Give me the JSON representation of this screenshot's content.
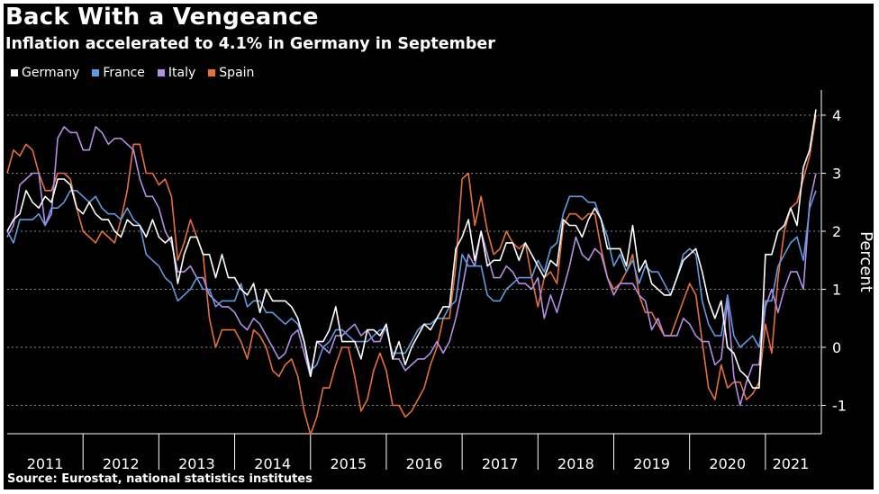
{
  "header": {
    "title": "Back With a Vengeance",
    "subtitle": "Inflation accelerated to 4.1% in Germany in September"
  },
  "source": "Source: Eurostat, national statistics institutes",
  "chart_data": {
    "type": "line",
    "title": "Back With a Vengeance",
    "subtitle": "Inflation accelerated to 4.1% in Germany in September",
    "ylabel": "Percent",
    "xlabel": "",
    "ylim": [
      -1.5,
      4.4
    ],
    "yticks": [
      -1,
      0,
      1,
      2,
      3,
      4
    ],
    "ytick_labels": [
      "-1",
      "0",
      "1",
      "2",
      "3",
      "4"
    ],
    "x_start": "2011-01",
    "x_end": "2021-09",
    "year_labels": [
      "2011",
      "2012",
      "2013",
      "2014",
      "2015",
      "2016",
      "2017",
      "2018",
      "2019",
      "2020",
      "2021"
    ],
    "legend_position": "top-left",
    "grid": "horizontal dotted",
    "series": [
      {
        "name": "Germany",
        "color": "#ffffff",
        "values": [
          2.0,
          2.2,
          2.3,
          2.7,
          2.5,
          2.4,
          2.6,
          2.5,
          2.9,
          2.9,
          2.8,
          2.4,
          2.3,
          2.5,
          2.3,
          2.2,
          2.2,
          2.0,
          1.9,
          2.2,
          2.1,
          2.1,
          1.9,
          2.2,
          1.9,
          1.8,
          1.9,
          1.1,
          1.6,
          1.9,
          1.9,
          1.6,
          1.6,
          1.2,
          1.6,
          1.2,
          1.2,
          1.0,
          0.9,
          1.1,
          0.6,
          1.0,
          0.8,
          0.8,
          0.8,
          0.7,
          0.5,
          0.1,
          -0.5,
          0.1,
          0.1,
          0.3,
          0.7,
          0.1,
          0.1,
          0.1,
          -0.2,
          0.3,
          0.3,
          0.2,
          0.4,
          -0.2,
          0.1,
          -0.3,
          0.0,
          0.2,
          0.4,
          0.3,
          0.5,
          0.7,
          0.7,
          1.7,
          1.9,
          2.2,
          1.5,
          2.0,
          1.4,
          1.5,
          1.5,
          1.8,
          1.8,
          1.5,
          1.8,
          1.6,
          1.4,
          1.2,
          1.5,
          1.4,
          2.2,
          2.1,
          2.1,
          1.9,
          2.2,
          2.4,
          2.2,
          1.7,
          1.7,
          1.7,
          1.4,
          2.1,
          1.3,
          1.5,
          1.1,
          1.0,
          0.9,
          0.9,
          1.2,
          1.5,
          1.6,
          1.7,
          1.3,
          0.8,
          0.5,
          0.8,
          0.0,
          -0.1,
          -0.4,
          -0.5,
          -0.7,
          -0.7,
          1.6,
          1.6,
          2.0,
          2.1,
          2.4,
          2.1,
          3.1,
          3.4,
          4.1
        ]
      },
      {
        "name": "France",
        "color": "#5f9bde",
        "values": [
          2.0,
          1.8,
          2.2,
          2.2,
          2.2,
          2.3,
          2.1,
          2.4,
          2.4,
          2.5,
          2.7,
          2.7,
          2.6,
          2.5,
          2.6,
          2.4,
          2.3,
          2.3,
          2.2,
          2.4,
          2.2,
          2.1,
          1.6,
          1.5,
          1.4,
          1.2,
          1.1,
          0.8,
          0.9,
          1.0,
          1.2,
          1.0,
          1.0,
          0.7,
          0.8,
          0.8,
          0.8,
          1.1,
          0.7,
          0.8,
          0.8,
          0.6,
          0.6,
          0.5,
          0.4,
          0.5,
          0.4,
          0.1,
          -0.4,
          -0.3,
          0.0,
          0.1,
          0.3,
          0.3,
          0.2,
          0.1,
          0.1,
          0.1,
          0.2,
          0.3,
          0.3,
          -0.1,
          -0.1,
          -0.1,
          0.1,
          0.3,
          0.4,
          0.4,
          0.5,
          0.5,
          0.7,
          0.8,
          1.6,
          1.4,
          1.4,
          1.4,
          0.9,
          0.8,
          0.8,
          1.0,
          1.1,
          1.2,
          1.2,
          1.2,
          1.5,
          1.3,
          1.7,
          1.8,
          2.3,
          2.6,
          2.6,
          2.6,
          2.5,
          2.5,
          2.2,
          1.9,
          1.4,
          1.6,
          1.3,
          1.5,
          1.1,
          1.4,
          1.3,
          1.3,
          1.1,
          0.9,
          1.2,
          1.6,
          1.7,
          1.6,
          0.8,
          0.4,
          0.2,
          0.2,
          0.9,
          0.2,
          0.0,
          0.1,
          0.2,
          0.0,
          0.8,
          0.8,
          1.4,
          1.6,
          1.8,
          1.9,
          1.5,
          2.4,
          2.7
        ]
      },
      {
        "name": "Italy",
        "color": "#b48ee6",
        "values": [
          1.9,
          2.1,
          2.8,
          2.9,
          3.0,
          3.0,
          2.1,
          2.3,
          3.6,
          3.8,
          3.7,
          3.7,
          3.4,
          3.4,
          3.8,
          3.7,
          3.5,
          3.6,
          3.6,
          3.5,
          3.4,
          2.9,
          2.6,
          2.6,
          2.4,
          2.0,
          1.8,
          1.3,
          1.3,
          1.4,
          1.2,
          1.2,
          0.9,
          0.8,
          0.7,
          0.7,
          0.6,
          0.4,
          0.3,
          0.5,
          0.4,
          0.2,
          0.0,
          -0.2,
          -0.1,
          0.2,
          0.3,
          -0.1,
          -0.5,
          0.1,
          0.0,
          -0.1,
          0.2,
          0.2,
          0.3,
          0.4,
          0.2,
          0.3,
          0.1,
          0.1,
          0.4,
          -0.2,
          -0.2,
          -0.4,
          -0.3,
          -0.2,
          -0.2,
          -0.1,
          0.1,
          -0.1,
          0.1,
          0.5,
          1.0,
          1.6,
          1.4,
          2.0,
          1.6,
          1.2,
          1.2,
          1.4,
          1.3,
          1.1,
          1.1,
          1.0,
          1.2,
          0.5,
          0.9,
          0.6,
          1.0,
          1.4,
          1.9,
          1.6,
          1.5,
          1.7,
          1.6,
          1.2,
          0.9,
          1.1,
          1.1,
          1.1,
          0.9,
          0.8,
          0.3,
          0.5,
          0.2,
          0.2,
          0.2,
          0.5,
          0.4,
          0.2,
          0.1,
          0.1,
          -0.3,
          -0.2,
          0.8,
          -0.5,
          -1.0,
          -0.6,
          -0.3,
          -0.3,
          0.7,
          1.0,
          0.6,
          1.0,
          1.3,
          1.3,
          1.0,
          2.5,
          3.0
        ]
      },
      {
        "name": "Spain",
        "color": "#e5703a",
        "values": [
          3.0,
          3.4,
          3.3,
          3.5,
          3.4,
          3.0,
          2.7,
          2.7,
          3.0,
          3.0,
          2.9,
          2.4,
          2.0,
          1.9,
          1.8,
          2.0,
          1.9,
          1.8,
          2.2,
          2.7,
          3.5,
          3.5,
          3.0,
          3.0,
          2.8,
          2.9,
          2.6,
          1.5,
          1.8,
          2.2,
          1.9,
          1.6,
          0.5,
          0.0,
          0.3,
          0.3,
          0.3,
          0.1,
          -0.2,
          0.3,
          0.2,
          0.0,
          -0.4,
          -0.5,
          -0.3,
          -0.2,
          -0.5,
          -1.1,
          -1.5,
          -1.2,
          -0.7,
          -0.7,
          -0.3,
          0.0,
          0.0,
          -0.5,
          -1.1,
          -0.9,
          -0.4,
          -0.1,
          -0.4,
          -1.0,
          -1.0,
          -1.2,
          -1.1,
          -0.9,
          -0.7,
          -0.3,
          0.0,
          0.5,
          0.5,
          1.4,
          2.9,
          3.0,
          2.1,
          2.6,
          2.0,
          1.6,
          1.7,
          2.0,
          1.8,
          1.7,
          1.8,
          1.2,
          0.7,
          1.2,
          1.3,
          1.1,
          2.1,
          2.3,
          2.3,
          2.2,
          2.3,
          2.3,
          1.7,
          1.2,
          1.0,
          1.1,
          1.3,
          1.6,
          0.9,
          0.6,
          0.6,
          0.4,
          0.2,
          0.2,
          0.5,
          0.8,
          1.1,
          0.9,
          0.1,
          -0.7,
          -0.9,
          -0.3,
          -0.7,
          -0.6,
          -0.6,
          -0.9,
          -0.8,
          -0.6,
          0.4,
          -0.1,
          1.2,
          2.0,
          2.4,
          2.5,
          2.9,
          3.3,
          4.0
        ]
      }
    ]
  }
}
